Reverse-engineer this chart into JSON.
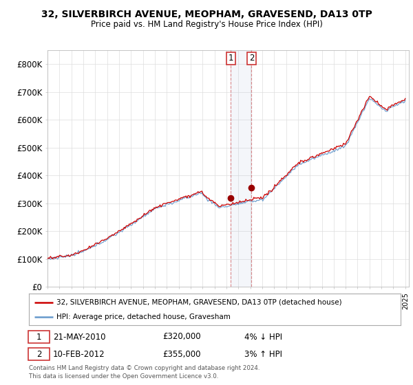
{
  "title": "32, SILVERBIRCH AVENUE, MEOPHAM, GRAVESEND, DA13 0TP",
  "subtitle": "Price paid vs. HM Land Registry's House Price Index (HPI)",
  "ylim": [
    0,
    850000
  ],
  "yticks": [
    0,
    100000,
    200000,
    300000,
    400000,
    500000,
    600000,
    700000,
    800000
  ],
  "ytick_labels": [
    "£0",
    "£100K",
    "£200K",
    "£300K",
    "£400K",
    "£500K",
    "£600K",
    "£700K",
    "£800K"
  ],
  "hpi_color": "#6699cc",
  "price_color": "#cc0000",
  "marker_color": "#990000",
  "purchase1": {
    "date": 2010.38,
    "price": 320000,
    "label": "1"
  },
  "purchase2": {
    "date": 2012.11,
    "price": 355000,
    "label": "2"
  },
  "legend_property": "32, SILVERBIRCH AVENUE, MEOPHAM, GRAVESEND, DA13 0TP (detached house)",
  "legend_hpi": "HPI: Average price, detached house, Gravesham",
  "background_color": "#ffffff",
  "plot_bg_color": "#ffffff",
  "grid_color": "#dddddd",
  "footnote": "Contains HM Land Registry data © Crown copyright and database right 2024.\nThis data is licensed under the Open Government Licence v3.0."
}
